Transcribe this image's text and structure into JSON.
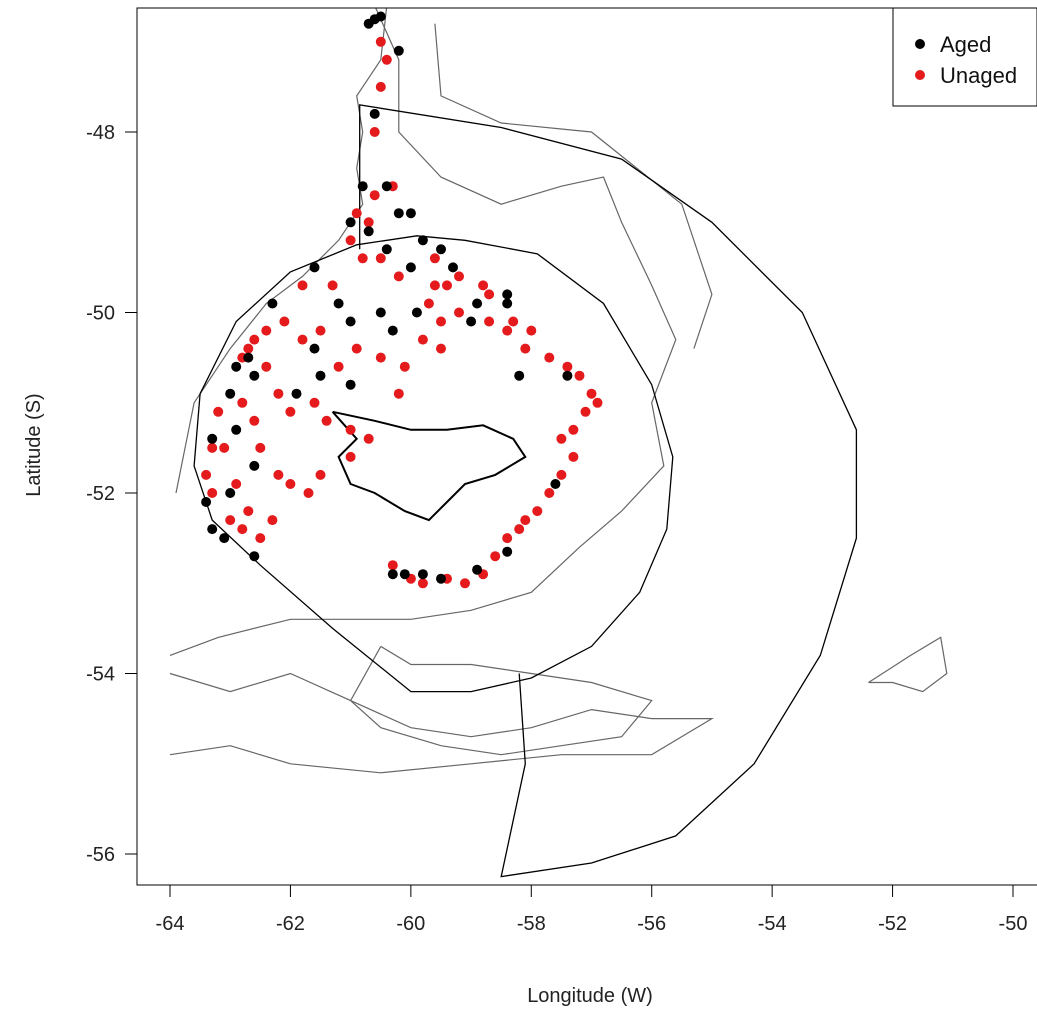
{
  "chart_data": {
    "type": "scatter",
    "xlabel": "Longitude (W)",
    "ylabel": "Latitude (S)",
    "xlim": [
      -64.3,
      -49.8
    ],
    "ylim": [
      -56.3,
      -46.6
    ],
    "x_ticks": [
      -64,
      -62,
      -60,
      -58,
      -56,
      -54,
      -52,
      -50
    ],
    "x_tick_labels": [
      "-64",
      "-62",
      "-60",
      "-58",
      "-56",
      "-54",
      "-52",
      "-50"
    ],
    "y_ticks": [
      -48,
      -50,
      -52,
      -54,
      -56
    ],
    "y_tick_labels": [
      "-48",
      "-50",
      "-52",
      "-54",
      "-56"
    ],
    "grid": false,
    "legend_position": "top-right",
    "colors": {
      "Aged": "#000000",
      "Unaged": "#e41a1c"
    },
    "series": [
      {
        "name": "Aged",
        "points": [
          [
            -60.7,
            -46.8
          ],
          [
            -60.6,
            -46.75
          ],
          [
            -60.5,
            -46.72
          ],
          [
            -60.2,
            -47.1
          ],
          [
            -60.6,
            -47.8
          ],
          [
            -60.8,
            -48.6
          ],
          [
            -60.4,
            -48.6
          ],
          [
            -61.0,
            -49.0
          ],
          [
            -60.7,
            -49.1
          ],
          [
            -60.2,
            -48.9
          ],
          [
            -60.0,
            -48.9
          ],
          [
            -59.8,
            -49.2
          ],
          [
            -59.5,
            -49.3
          ],
          [
            -59.3,
            -49.5
          ],
          [
            -61.6,
            -49.5
          ],
          [
            -60.4,
            -49.3
          ],
          [
            -60.0,
            -49.5
          ],
          [
            -62.3,
            -49.9
          ],
          [
            -61.2,
            -49.9
          ],
          [
            -60.5,
            -50.0
          ],
          [
            -59.9,
            -50.0
          ],
          [
            -60.3,
            -50.2
          ],
          [
            -61.0,
            -50.1
          ],
          [
            -58.9,
            -49.9
          ],
          [
            -58.4,
            -49.8
          ],
          [
            -58.4,
            -49.9
          ],
          [
            -59.0,
            -50.1
          ],
          [
            -61.6,
            -50.4
          ],
          [
            -62.7,
            -50.5
          ],
          [
            -62.9,
            -50.6
          ],
          [
            -62.6,
            -50.7
          ],
          [
            -61.5,
            -50.7
          ],
          [
            -61.0,
            -50.8
          ],
          [
            -58.2,
            -50.7
          ],
          [
            -57.4,
            -50.7
          ],
          [
            -63.0,
            -50.9
          ],
          [
            -61.9,
            -50.9
          ],
          [
            -62.9,
            -51.3
          ],
          [
            -62.6,
            -51.7
          ],
          [
            -63.3,
            -51.4
          ],
          [
            -63.0,
            -52.0
          ],
          [
            -57.6,
            -51.9
          ],
          [
            -63.4,
            -52.1
          ],
          [
            -63.3,
            -52.4
          ],
          [
            -63.1,
            -52.5
          ],
          [
            -62.6,
            -52.7
          ],
          [
            -60.3,
            -52.9
          ],
          [
            -60.1,
            -52.9
          ],
          [
            -59.8,
            -52.9
          ],
          [
            -59.5,
            -52.95
          ],
          [
            -58.9,
            -52.85
          ],
          [
            -58.4,
            -52.65
          ]
        ]
      },
      {
        "name": "Unaged",
        "points": [
          [
            -60.5,
            -47.0
          ],
          [
            -60.4,
            -47.2
          ],
          [
            -60.5,
            -47.5
          ],
          [
            -60.6,
            -48.0
          ],
          [
            -60.3,
            -48.6
          ],
          [
            -60.6,
            -48.7
          ],
          [
            -60.9,
            -48.9
          ],
          [
            -61.0,
            -49.2
          ],
          [
            -60.8,
            -49.4
          ],
          [
            -60.5,
            -49.4
          ],
          [
            -60.7,
            -49.0
          ],
          [
            -59.6,
            -49.4
          ],
          [
            -60.2,
            -49.6
          ],
          [
            -59.6,
            -49.7
          ],
          [
            -59.4,
            -49.7
          ],
          [
            -59.2,
            -49.6
          ],
          [
            -58.8,
            -49.7
          ],
          [
            -58.7,
            -49.8
          ],
          [
            -58.3,
            -50.1
          ],
          [
            -58.0,
            -50.2
          ],
          [
            -59.7,
            -49.9
          ],
          [
            -59.5,
            -50.1
          ],
          [
            -59.2,
            -50.0
          ],
          [
            -58.7,
            -50.1
          ],
          [
            -58.4,
            -50.2
          ],
          [
            -58.1,
            -50.4
          ],
          [
            -57.7,
            -50.5
          ],
          [
            -57.4,
            -50.6
          ],
          [
            -57.2,
            -50.7
          ],
          [
            -57.0,
            -50.9
          ],
          [
            -56.9,
            -51.0
          ],
          [
            -57.1,
            -51.1
          ],
          [
            -57.3,
            -51.3
          ],
          [
            -57.5,
            -51.4
          ],
          [
            -57.3,
            -51.6
          ],
          [
            -57.5,
            -51.8
          ],
          [
            -57.7,
            -52.0
          ],
          [
            -57.9,
            -52.2
          ],
          [
            -58.1,
            -52.3
          ],
          [
            -58.2,
            -52.4
          ],
          [
            -58.4,
            -52.5
          ],
          [
            -58.6,
            -52.7
          ],
          [
            -58.8,
            -52.9
          ],
          [
            -59.1,
            -53.0
          ],
          [
            -59.4,
            -52.95
          ],
          [
            -59.8,
            -53.0
          ],
          [
            -60.0,
            -52.95
          ],
          [
            -60.3,
            -52.8
          ],
          [
            -61.3,
            -49.7
          ],
          [
            -61.8,
            -49.7
          ],
          [
            -62.1,
            -50.1
          ],
          [
            -62.4,
            -50.2
          ],
          [
            -62.6,
            -50.3
          ],
          [
            -62.8,
            -50.5
          ],
          [
            -62.4,
            -50.6
          ],
          [
            -62.2,
            -50.9
          ],
          [
            -62.0,
            -51.1
          ],
          [
            -62.8,
            -51.0
          ],
          [
            -62.6,
            -51.2
          ],
          [
            -62.5,
            -51.5
          ],
          [
            -62.2,
            -51.8
          ],
          [
            -62.0,
            -51.9
          ],
          [
            -61.7,
            -52.0
          ],
          [
            -61.5,
            -51.8
          ],
          [
            -63.2,
            -51.1
          ],
          [
            -63.3,
            -51.5
          ],
          [
            -63.4,
            -51.8
          ],
          [
            -63.3,
            -52.0
          ],
          [
            -63.0,
            -52.3
          ],
          [
            -62.8,
            -52.4
          ],
          [
            -62.5,
            -52.5
          ],
          [
            -62.3,
            -52.3
          ],
          [
            -61.6,
            -51.0
          ],
          [
            -61.4,
            -51.2
          ],
          [
            -61.0,
            -51.6
          ],
          [
            -60.7,
            -51.4
          ],
          [
            -61.8,
            -50.3
          ],
          [
            -61.5,
            -50.2
          ],
          [
            -61.2,
            -50.6
          ],
          [
            -60.9,
            -50.4
          ],
          [
            -60.5,
            -50.5
          ],
          [
            -60.1,
            -50.6
          ],
          [
            -59.8,
            -50.3
          ],
          [
            -59.5,
            -50.4
          ],
          [
            -60.2,
            -50.9
          ],
          [
            -61.0,
            -51.3
          ],
          [
            -62.7,
            -50.4
          ],
          [
            -63.1,
            -51.5
          ],
          [
            -62.9,
            -51.9
          ],
          [
            -62.7,
            -52.2
          ]
        ]
      }
    ],
    "boundary_lines": [
      {
        "name": "management-zone-outer",
        "points": [
          [
            -60.85,
            -49.3
          ],
          [
            -60.85,
            -47.7
          ],
          [
            -58.5,
            -47.95
          ],
          [
            -56.5,
            -48.3
          ],
          [
            -55.0,
            -49.0
          ],
          [
            -53.5,
            -50.0
          ],
          [
            -52.6,
            -51.3
          ],
          [
            -52.6,
            -52.5
          ],
          [
            -53.2,
            -53.8
          ],
          [
            -54.3,
            -55.0
          ],
          [
            -55.6,
            -55.8
          ],
          [
            -57.0,
            -56.1
          ],
          [
            -58.5,
            -56.25
          ],
          [
            -58.1,
            -55.0
          ],
          [
            -58.2,
            -54.0
          ]
        ]
      },
      {
        "name": "fishing-zone-circle",
        "points": [
          [
            -59.1,
            -49.2
          ],
          [
            -57.9,
            -49.35
          ],
          [
            -56.8,
            -49.9
          ],
          [
            -56.0,
            -50.8
          ],
          [
            -55.65,
            -51.6
          ],
          [
            -55.75,
            -52.4
          ],
          [
            -56.2,
            -53.1
          ],
          [
            -57.0,
            -53.7
          ],
          [
            -58.0,
            -54.05
          ],
          [
            -59.0,
            -54.2
          ],
          [
            -60.0,
            -54.2
          ],
          [
            -61.3,
            -53.5
          ],
          [
            -62.5,
            -52.8
          ],
          [
            -63.3,
            -52.3
          ],
          [
            -63.6,
            -51.7
          ],
          [
            -63.5,
            -50.9
          ],
          [
            -62.9,
            -50.1
          ],
          [
            -62.0,
            -49.55
          ],
          [
            -60.9,
            -49.25
          ],
          [
            -59.9,
            -49.15
          ],
          [
            -59.1,
            -49.2
          ]
        ]
      },
      {
        "name": "islands-outline",
        "points": [
          [
            -61.3,
            -51.1
          ],
          [
            -60.6,
            -51.2
          ],
          [
            -60.0,
            -51.3
          ],
          [
            -59.4,
            -51.3
          ],
          [
            -58.8,
            -51.25
          ],
          [
            -58.3,
            -51.4
          ],
          [
            -58.1,
            -51.6
          ],
          [
            -58.6,
            -51.8
          ],
          [
            -59.1,
            -51.9
          ],
          [
            -59.4,
            -52.1
          ],
          [
            -59.7,
            -52.3
          ],
          [
            -60.1,
            -52.2
          ],
          [
            -60.6,
            -52.0
          ],
          [
            -61.0,
            -51.9
          ],
          [
            -61.2,
            -51.6
          ],
          [
            -60.9,
            -51.4
          ],
          [
            -61.3,
            -51.1
          ]
        ]
      }
    ],
    "bathymetry_lines": [
      [
        [
          -60.4,
          -46.6
        ],
        [
          -60.5,
          -47.2
        ],
        [
          -60.9,
          -47.6
        ],
        [
          -60.8,
          -48.0
        ],
        [
          -60.9,
          -48.4
        ],
        [
          -60.8,
          -48.8
        ],
        [
          -61.2,
          -49.2
        ],
        [
          -61.8,
          -49.6
        ],
        [
          -62.4,
          -49.9
        ],
        [
          -63.0,
          -50.4
        ],
        [
          -63.6,
          -51.0
        ],
        [
          -63.9,
          -52.0
        ]
      ],
      [
        [
          -60.6,
          -46.6
        ],
        [
          -60.2,
          -47.2
        ],
        [
          -60.2,
          -48.0
        ],
        [
          -59.5,
          -48.5
        ],
        [
          -58.5,
          -48.8
        ],
        [
          -57.5,
          -48.6
        ],
        [
          -56.8,
          -48.5
        ],
        [
          -56.5,
          -49.0
        ],
        [
          -56.0,
          -49.7
        ],
        [
          -55.6,
          -50.3
        ],
        [
          -56.0,
          -51.0
        ],
        [
          -55.8,
          -51.7
        ],
        [
          -56.5,
          -52.2
        ],
        [
          -57.2,
          -52.6
        ],
        [
          -58.0,
          -53.1
        ],
        [
          -59.0,
          -53.3
        ],
        [
          -60.0,
          -53.4
        ],
        [
          -61.0,
          -53.4
        ],
        [
          -62.0,
          -53.4
        ],
        [
          -63.2,
          -53.6
        ],
        [
          -64.0,
          -53.8
        ]
      ],
      [
        [
          -59.6,
          -46.8
        ],
        [
          -59.5,
          -47.6
        ],
        [
          -58.5,
          -47.9
        ],
        [
          -57.0,
          -48.0
        ],
        [
          -55.5,
          -48.8
        ],
        [
          -55.0,
          -49.8
        ],
        [
          -55.3,
          -50.4
        ]
      ],
      [
        [
          -64.0,
          -54.0
        ],
        [
          -63.0,
          -54.2
        ],
        [
          -62.0,
          -54.0
        ],
        [
          -61.0,
          -54.3
        ],
        [
          -60.0,
          -54.6
        ],
        [
          -59.0,
          -54.7
        ],
        [
          -58.0,
          -54.6
        ],
        [
          -57.0,
          -54.4
        ],
        [
          -56.0,
          -54.5
        ],
        [
          -55.0,
          -54.5
        ],
        [
          -56.0,
          -54.9
        ],
        [
          -57.5,
          -54.9
        ],
        [
          -59.0,
          -55.0
        ],
        [
          -60.5,
          -55.1
        ],
        [
          -62.0,
          -55.0
        ],
        [
          -63.0,
          -54.8
        ],
        [
          -64.0,
          -54.9
        ]
      ],
      [
        [
          -60.5,
          -53.7
        ],
        [
          -60.0,
          -53.9
        ],
        [
          -59.0,
          -53.9
        ],
        [
          -58.0,
          -54.0
        ],
        [
          -57.0,
          -54.1
        ],
        [
          -56.0,
          -54.3
        ],
        [
          -56.5,
          -54.7
        ],
        [
          -57.5,
          -54.8
        ],
        [
          -58.5,
          -54.9
        ],
        [
          -59.5,
          -54.8
        ],
        [
          -60.5,
          -54.6
        ],
        [
          -61.0,
          -54.3
        ],
        [
          -60.5,
          -53.7
        ]
      ],
      [
        [
          -52.4,
          -54.1
        ],
        [
          -51.7,
          -53.8
        ],
        [
          -51.2,
          -53.6
        ],
        [
          -51.1,
          -54.0
        ],
        [
          -51.5,
          -54.2
        ],
        [
          -52.0,
          -54.1
        ],
        [
          -52.4,
          -54.1
        ]
      ]
    ]
  },
  "legend": {
    "aged_label": "Aged",
    "unaged_label": "Unaged"
  }
}
